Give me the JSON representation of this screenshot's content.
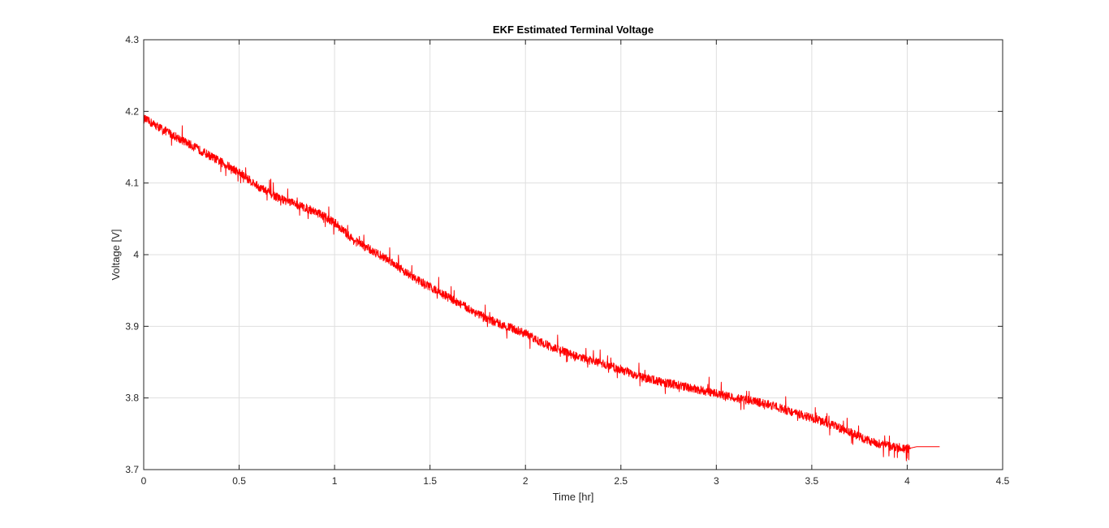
{
  "chart_data": {
    "type": "line",
    "title": "EKF Estimated Terminal Voltage",
    "xlabel": "Time [hr]",
    "ylabel": "Voltage [V]",
    "xlim": [
      0,
      4.5
    ],
    "ylim": [
      3.7,
      4.3
    ],
    "xticks": [
      0,
      0.5,
      1,
      1.5,
      2,
      2.5,
      3,
      3.5,
      4,
      4.5
    ],
    "xtick_labels": [
      "0",
      "0.5",
      "1",
      "1.5",
      "2",
      "2.5",
      "3",
      "3.5",
      "4",
      "4.5"
    ],
    "yticks": [
      3.7,
      3.8,
      3.9,
      4.0,
      4.1,
      4.2,
      4.3
    ],
    "ytick_labels": [
      "3.7",
      "3.8",
      "3.9",
      "4",
      "4.1",
      "4.2",
      "4.3"
    ],
    "grid": true,
    "series": [
      {
        "color": "#ff0000",
        "x": [
          0,
          0.1,
          0.2,
          0.3,
          0.4,
          0.5,
          0.6,
          0.7,
          0.8,
          0.9,
          1.0,
          1.1,
          1.2,
          1.3,
          1.4,
          1.5,
          1.6,
          1.7,
          1.8,
          1.9,
          2.0,
          2.1,
          2.2,
          2.3,
          2.4,
          2.5,
          2.6,
          2.7,
          2.8,
          2.9,
          3.0,
          3.1,
          3.2,
          3.3,
          3.4,
          3.5,
          3.6,
          3.7,
          3.8,
          3.9,
          4.0,
          4.05,
          4.17
        ],
        "y": [
          4.19,
          4.175,
          4.16,
          4.145,
          4.13,
          4.115,
          4.095,
          4.08,
          4.07,
          4.06,
          4.045,
          4.02,
          4.005,
          3.99,
          3.97,
          3.955,
          3.94,
          3.925,
          3.91,
          3.9,
          3.89,
          3.875,
          3.865,
          3.855,
          3.848,
          3.84,
          3.83,
          3.823,
          3.818,
          3.812,
          3.806,
          3.8,
          3.795,
          3.789,
          3.78,
          3.772,
          3.763,
          3.752,
          3.74,
          3.733,
          3.729,
          3.732,
          3.732
        ],
        "noise_amplitude": 0.006
      }
    ]
  }
}
